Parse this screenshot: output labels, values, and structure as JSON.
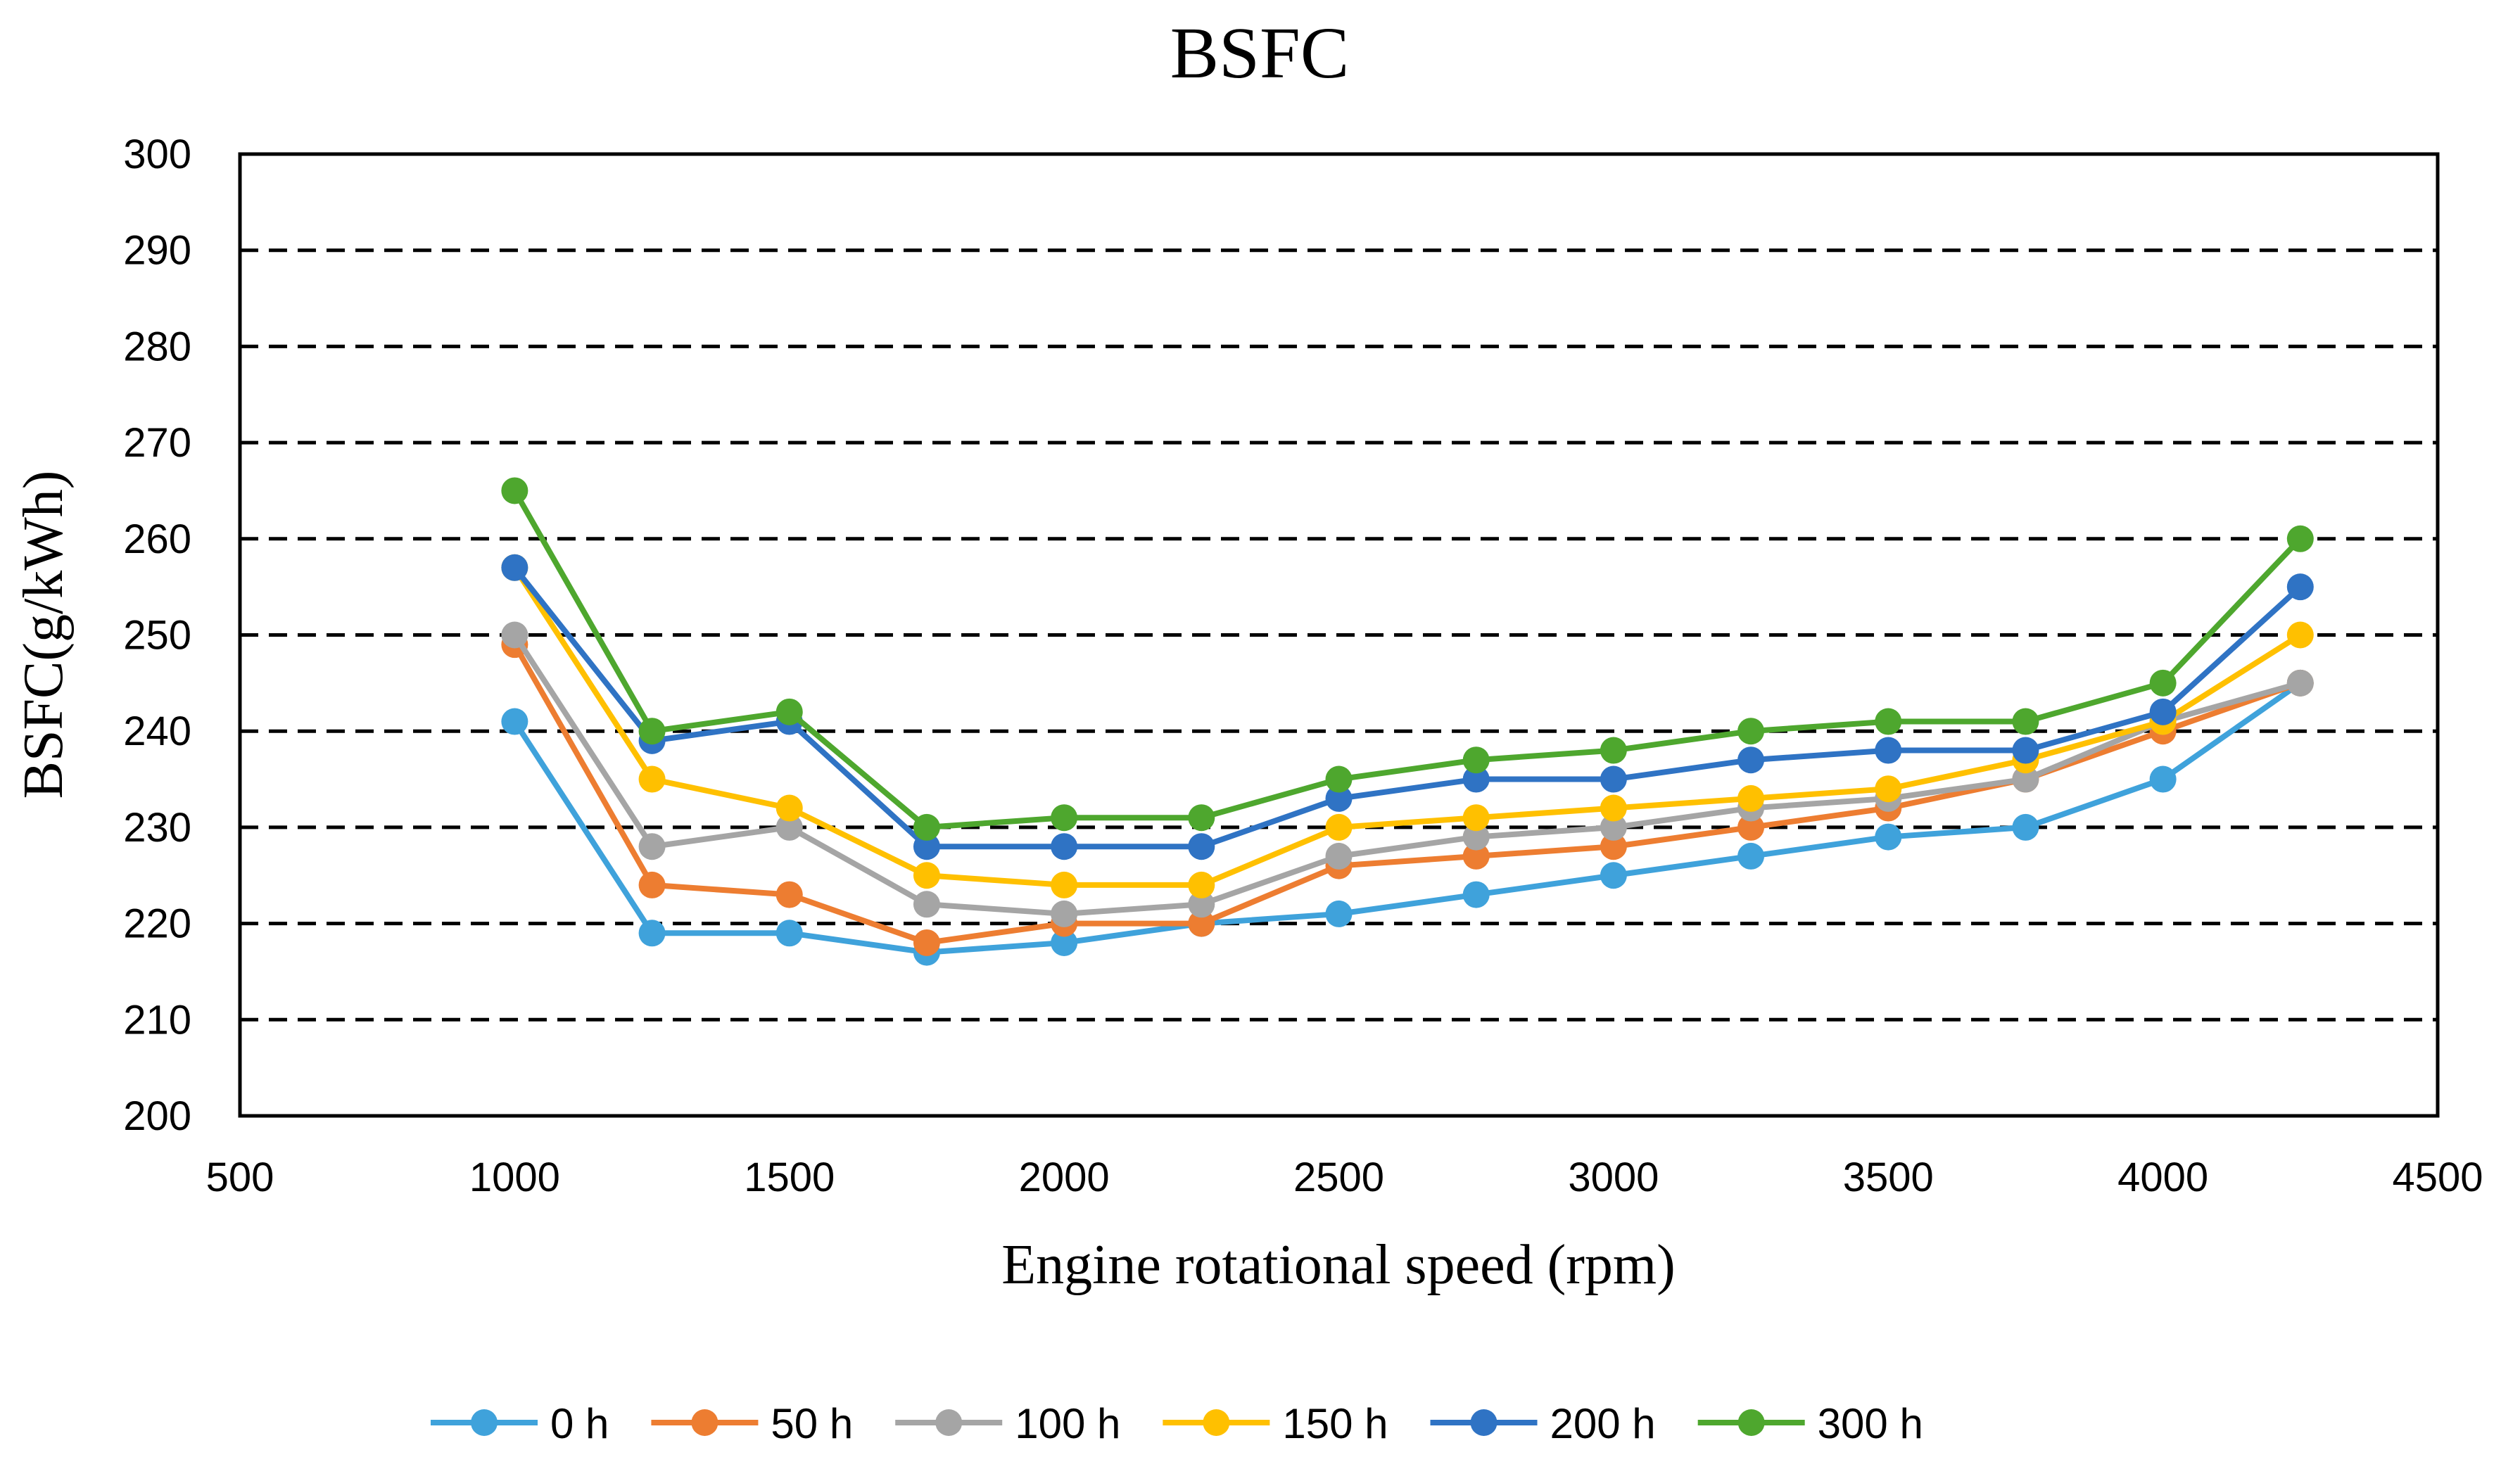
{
  "chart_data": {
    "type": "line",
    "title": "BSFC",
    "xlabel": "Engine rotational speed (rpm)",
    "ylabel": "BSFC(g/kWh)",
    "xlim": [
      500,
      4500
    ],
    "ylim": [
      200,
      300
    ],
    "xticks": [
      500,
      1000,
      1500,
      2000,
      2500,
      3000,
      3500,
      4000,
      4500
    ],
    "yticks": [
      200,
      210,
      220,
      230,
      240,
      250,
      260,
      270,
      280,
      290,
      300
    ],
    "grid": "horizontal dashed",
    "legend_position": "bottom",
    "x": [
      1000,
      1250,
      1500,
      1750,
      2000,
      2250,
      2500,
      2750,
      3000,
      3250,
      3500,
      3750,
      4000,
      4250
    ],
    "series": [
      {
        "name": "0 h",
        "color": "#3fa2db",
        "values": [
          241,
          219,
          219,
          217,
          218,
          220,
          221,
          223,
          225,
          227,
          229,
          230,
          235,
          245
        ]
      },
      {
        "name": "50 h",
        "color": "#ed7d31",
        "values": [
          249,
          224,
          223,
          218,
          220,
          220,
          226,
          227,
          228,
          230,
          232,
          235,
          240,
          245
        ]
      },
      {
        "name": "100 h",
        "color": "#a5a5a5",
        "values": [
          250,
          228,
          230,
          222,
          221,
          222,
          227,
          229,
          230,
          232,
          233,
          235,
          241,
          245
        ]
      },
      {
        "name": "150 h",
        "color": "#ffc000",
        "values": [
          257,
          235,
          232,
          225,
          224,
          224,
          230,
          231,
          232,
          233,
          234,
          237,
          241,
          250
        ]
      },
      {
        "name": "200 h",
        "color": "#2f73c4",
        "values": [
          257,
          239,
          241,
          228,
          228,
          228,
          233,
          235,
          235,
          237,
          238,
          238,
          242,
          255
        ]
      },
      {
        "name": "300 h",
        "color": "#4ea72e",
        "values": [
          265,
          240,
          242,
          230,
          231,
          231,
          235,
          237,
          238,
          240,
          241,
          241,
          245,
          260
        ]
      }
    ]
  }
}
